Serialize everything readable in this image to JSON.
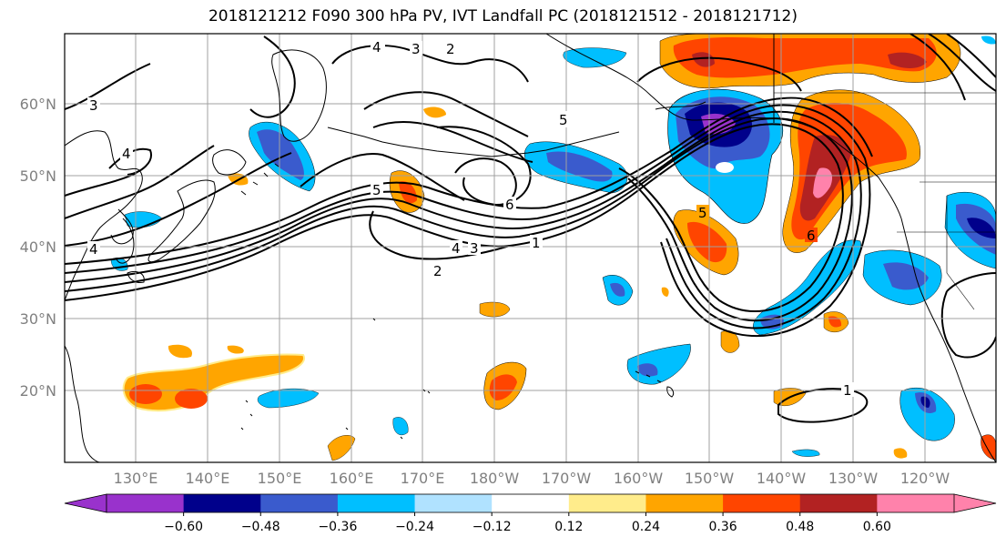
{
  "title": "2018121212 F090 300 hPa PV, IVT Landfall PC (2018121512 - 2018121712)",
  "map": {
    "lat_labels": [
      "60°N",
      "50°N",
      "40°N",
      "30°N",
      "20°N"
    ],
    "lon_labels": [
      "130°E",
      "140°E",
      "150°E",
      "160°E",
      "170°E",
      "180°W",
      "170°W",
      "160°W",
      "150°W",
      "140°W",
      "130°W",
      "120°W"
    ],
    "pv_contour_labels": [
      "4",
      "3",
      "2",
      "3",
      "5",
      "6",
      "5",
      "4",
      "3",
      "2",
      "1",
      "5",
      "6",
      "1",
      "4",
      "4"
    ]
  },
  "colorbar": {
    "ticks": [
      "−0.60",
      "−0.48",
      "−0.36",
      "−0.24",
      "−0.12",
      "0.12",
      "0.24",
      "0.36",
      "0.48",
      "0.60"
    ],
    "colors": [
      "#9932cc",
      "#00008b",
      "#3a5bcd",
      "#00bfff",
      "#b0e2ff",
      "#ffffff",
      "#ffec8b",
      "#ffa500",
      "#ff4500",
      "#b22222",
      "#ff82ab"
    ]
  }
}
